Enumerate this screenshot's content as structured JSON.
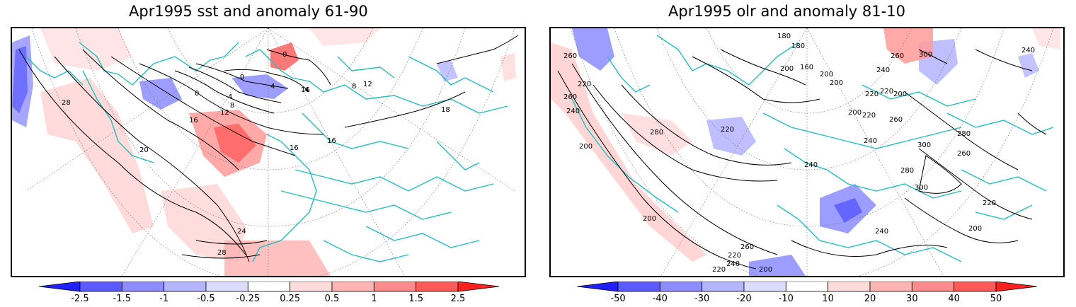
{
  "left_panel": {
    "title": "Apr1995 sst and anomaly 61-90",
    "contour_labels": [
      "28",
      "20",
      "24",
      "28",
      "16",
      "12",
      "8",
      "4",
      "0",
      "0",
      "4",
      "4",
      "8",
      "12",
      "16",
      "16",
      "16",
      "18",
      "0"
    ],
    "colorbar": {
      "ticks": [
        "-2.5",
        "-1.5",
        "-1",
        "-0.5",
        "-0.25",
        "0.25",
        "0.5",
        "1",
        "1.5",
        "2.5"
      ],
      "colors": [
        "#2020ff",
        "#5a5aff",
        "#8c8cff",
        "#b4b4ff",
        "#dcdcff",
        "#ffffff",
        "#ffdcdc",
        "#ffb4b4",
        "#ff8c8c",
        "#ff5a5a",
        "#ff2020"
      ]
    }
  },
  "right_panel": {
    "title": "Apr1995 olr and anomaly 81-10",
    "contour_labels": [
      "260",
      "220",
      "180",
      "180",
      "200",
      "160",
      "200",
      "200",
      "220",
      "220",
      "200",
      "260",
      "280",
      "240",
      "220",
      "260",
      "300",
      "240",
      "240",
      "200",
      "200",
      "220",
      "240",
      "260",
      "280",
      "300",
      "260",
      "280",
      "240",
      "300",
      "240",
      "220",
      "200",
      "200",
      "220",
      "260",
      "240",
      "220",
      "200"
    ],
    "colorbar": {
      "ticks": [
        "-50",
        "-40",
        "-30",
        "-20",
        "-10",
        "10",
        "20",
        "30",
        "40",
        "50"
      ],
      "colors": [
        "#2020ff",
        "#5a5aff",
        "#8c8cff",
        "#b4b4ff",
        "#dcdcff",
        "#ffffff",
        "#ffdcdc",
        "#ffb4b4",
        "#ff8c8c",
        "#ff5a5a",
        "#ff2020"
      ]
    }
  },
  "colors": {
    "coast": "#20c0c0",
    "contour": "#000000",
    "border": "#000000"
  }
}
